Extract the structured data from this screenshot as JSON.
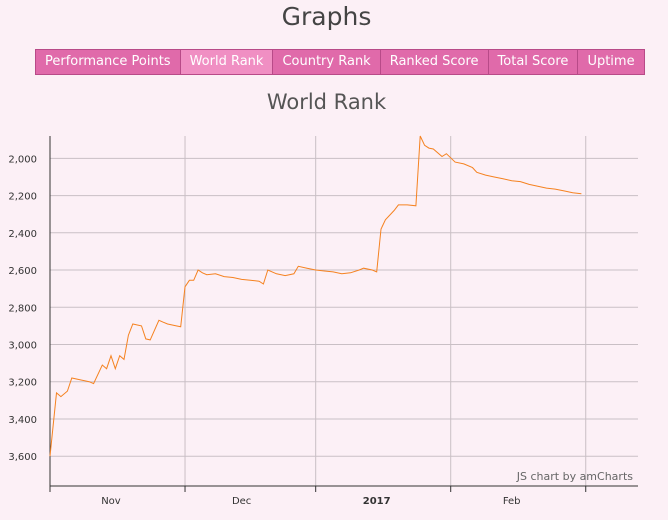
{
  "page": {
    "title": "Graphs"
  },
  "tabs": [
    {
      "label": "Performance Points",
      "active": false
    },
    {
      "label": "World Rank",
      "active": true
    },
    {
      "label": "Country Rank",
      "active": false
    },
    {
      "label": "Ranked Score",
      "active": false
    },
    {
      "label": "Total Score",
      "active": false
    },
    {
      "label": "Uptime",
      "active": false
    }
  ],
  "credit": "JS chart by amCharts",
  "colors": {
    "line": "#f58220",
    "grid": "#c9bfc5",
    "tab": "#e06aaa",
    "tab_active": "#f08fc3"
  },
  "chart_data": {
    "type": "line",
    "title": "World Rank",
    "y_reversed": true,
    "ylim": [
      1880,
      3760
    ],
    "y_ticks": [
      2000,
      2200,
      2400,
      2600,
      2800,
      3000,
      3200,
      3400,
      3600
    ],
    "y_tick_labels": [
      "2,000",
      "2,200",
      "2,400",
      "2,600",
      "2,800",
      "3,000",
      "3,200",
      "3,400",
      "3,600"
    ],
    "x_range": [
      0,
      135
    ],
    "x_ticks": [
      {
        "day": 14,
        "label": "Nov",
        "bold": false
      },
      {
        "day": 44,
        "label": "Dec",
        "bold": false
      },
      {
        "day": 75,
        "label": "2017",
        "bold": true
      },
      {
        "day": 106,
        "label": "Feb",
        "bold": false
      }
    ],
    "x_grid_days": [
      0,
      31,
      61,
      92,
      123
    ],
    "series": [
      {
        "name": "World Rank",
        "points": [
          [
            0,
            3600
          ],
          [
            1.5,
            3260
          ],
          [
            2.5,
            3280
          ],
          [
            4,
            3250
          ],
          [
            5,
            3180
          ],
          [
            7,
            3190
          ],
          [
            9,
            3200
          ],
          [
            10,
            3210
          ],
          [
            12,
            3110
          ],
          [
            13,
            3130
          ],
          [
            14,
            3060
          ],
          [
            15,
            3130
          ],
          [
            16,
            3060
          ],
          [
            17,
            3080
          ],
          [
            18,
            2950
          ],
          [
            19,
            2890
          ],
          [
            21,
            2900
          ],
          [
            22,
            2970
          ],
          [
            23,
            2975
          ],
          [
            25,
            2870
          ],
          [
            26,
            2880
          ],
          [
            27,
            2890
          ],
          [
            29,
            2900
          ],
          [
            30,
            2905
          ],
          [
            31,
            2690
          ],
          [
            32,
            2655
          ],
          [
            33,
            2655
          ],
          [
            34,
            2600
          ],
          [
            35,
            2615
          ],
          [
            36,
            2625
          ],
          [
            38,
            2620
          ],
          [
            40,
            2635
          ],
          [
            42,
            2640
          ],
          [
            44,
            2650
          ],
          [
            46,
            2655
          ],
          [
            48,
            2660
          ],
          [
            49,
            2675
          ],
          [
            50,
            2600
          ],
          [
            52,
            2620
          ],
          [
            54,
            2630
          ],
          [
            56,
            2620
          ],
          [
            57,
            2580
          ],
          [
            59,
            2590
          ],
          [
            61,
            2600
          ],
          [
            63,
            2605
          ],
          [
            65,
            2610
          ],
          [
            67,
            2620
          ],
          [
            69,
            2615
          ],
          [
            71,
            2600
          ],
          [
            72,
            2590
          ],
          [
            74,
            2600
          ],
          [
            75,
            2610
          ],
          [
            76,
            2380
          ],
          [
            77,
            2330
          ],
          [
            79,
            2280
          ],
          [
            80,
            2250
          ],
          [
            82,
            2250
          ],
          [
            84,
            2255
          ],
          [
            85,
            1880
          ],
          [
            86,
            1930
          ],
          [
            87,
            1945
          ],
          [
            88,
            1950
          ],
          [
            90,
            1990
          ],
          [
            91,
            1975
          ],
          [
            93,
            2020
          ],
          [
            95,
            2030
          ],
          [
            97,
            2050
          ],
          [
            98,
            2075
          ],
          [
            100,
            2090
          ],
          [
            102,
            2100
          ],
          [
            104,
            2110
          ],
          [
            106,
            2120
          ],
          [
            108,
            2125
          ],
          [
            110,
            2140
          ],
          [
            112,
            2150
          ],
          [
            114,
            2160
          ],
          [
            116,
            2165
          ],
          [
            118,
            2175
          ],
          [
            120,
            2185
          ],
          [
            122,
            2190
          ]
        ]
      }
    ]
  }
}
